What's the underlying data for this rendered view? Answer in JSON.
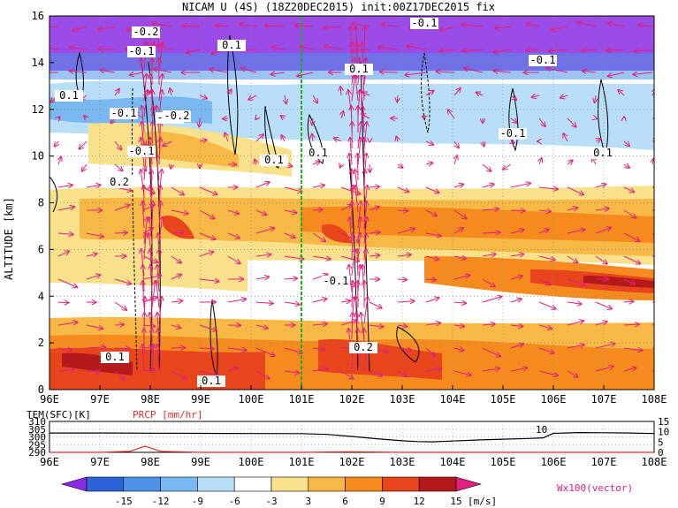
{
  "title": "NICAM U (4S) (18Z20DEC2015) init:00Z17DEC2015 fix",
  "chart_data": [
    {
      "type": "heatmap",
      "ylabel": "ALTITUDE [km]",
      "xlim": [
        96,
        108
      ],
      "ylim": [
        0,
        16
      ],
      "x_ticks": [
        "96E",
        "97E",
        "98E",
        "99E",
        "100E",
        "101E",
        "102E",
        "103E",
        "104E",
        "105E",
        "106E",
        "107E",
        "108E"
      ],
      "y_ticks": [
        "0",
        "2",
        "4",
        "6",
        "8",
        "10",
        "12",
        "14",
        "16"
      ],
      "marker_line_x": 101,
      "contour_labels": [
        "-0.2",
        "-0.1",
        "-0.1",
        "0.1",
        "-0.1",
        "0.1",
        "0.1",
        "0.1",
        "-0.1",
        "0.1",
        "-0.1",
        "0.2",
        "-0.1",
        "0.1",
        "0.1",
        "-0.1",
        "0.2",
        "-0.2",
        "-0.1",
        "0.1"
      ],
      "vector_label": "Wx100(vector)"
    },
    {
      "type": "line",
      "xlim": [
        96,
        108
      ],
      "x_ticks": [
        "96E",
        "97E",
        "98E",
        "99E",
        "100E",
        "101E",
        "102E",
        "103E",
        "104E",
        "105E",
        "106E",
        "107E",
        "108E"
      ],
      "series": [
        {
          "name": "TEM(SFC)[K]",
          "x": [
            96,
            97,
            98,
            99,
            100,
            101,
            101.5,
            102,
            102.5,
            103,
            103.3,
            103.6,
            104,
            104.5,
            105,
            105.5,
            105.8,
            106,
            106.5,
            107,
            107.5,
            108
          ],
          "y": [
            302.5,
            302.5,
            302.4,
            302.3,
            302.2,
            302.1,
            301.6,
            300.3,
            298.8,
            297.5,
            297.0,
            296.8,
            297.3,
            298.0,
            298.5,
            299.0,
            299.4,
            302.3,
            302.8,
            302.7,
            302.5,
            302.2
          ]
        },
        {
          "name": "PRCP [mm/hr]",
          "x": [
            96,
            97,
            97.6,
            97.9,
            98.2,
            99,
            100,
            101,
            102,
            103,
            104,
            105,
            106,
            107,
            108
          ],
          "y": [
            0,
            0,
            0.5,
            3,
            0.5,
            0,
            0,
            0,
            0.3,
            0,
            0,
            0,
            0,
            0,
            0
          ]
        }
      ],
      "y_left_ticks": [
        "310",
        "305",
        "300",
        "295",
        "290"
      ],
      "y_right_ticks": [
        "15",
        "10",
        "5",
        "0"
      ],
      "annotation": "10"
    }
  ],
  "colorbar": {
    "ticks": [
      "-15",
      "-12",
      "-9",
      "-6",
      "-3",
      "3",
      "6",
      "9",
      "12",
      "15"
    ],
    "colors": [
      "#8a2be2",
      "#2e63d8",
      "#4c92e8",
      "#79b8f0",
      "#b9def8",
      "#ffffff",
      "#f9e08a",
      "#f8b845",
      "#f58a1e",
      "#e8451d",
      "#b51a1a",
      "#e0207a"
    ],
    "units": "[m/s]"
  }
}
